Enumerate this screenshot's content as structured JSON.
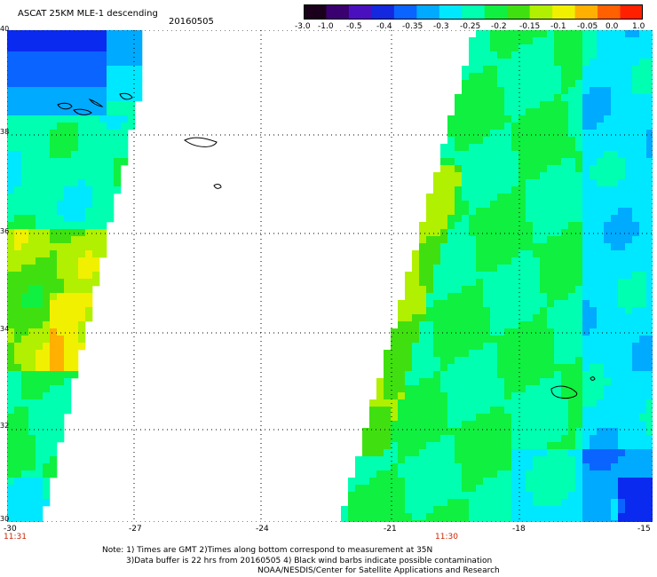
{
  "header": {
    "title": "ASCAT 25KM MLE-1 descending",
    "date": "20160505"
  },
  "colorbar": {
    "labels": [
      "-3.0",
      "-1.0",
      "-0.5",
      "-0.4",
      "-0.35",
      "-0.3",
      "-0.25",
      "-0.2",
      "-0.15",
      "-0.1",
      "-0.05",
      "0.0",
      "1.0"
    ],
    "colors": [
      "#1a001a",
      "#3a0070",
      "#4a10c0",
      "#1428e0",
      "#0a64ff",
      "#00aaff",
      "#00e8ff",
      "#00ffb0",
      "#10f040",
      "#40e010",
      "#b0f000",
      "#f0f000",
      "#ffb000",
      "#ff6000",
      "#ff2000"
    ]
  },
  "axes": {
    "x_ticks": [
      "-30",
      "-27",
      "-24",
      "-21",
      "-18",
      "-15"
    ],
    "y_ticks": [
      "40",
      "38",
      "36",
      "34",
      "32",
      "30"
    ],
    "time_labels": [
      "11:31",
      "11:30"
    ]
  },
  "notes": {
    "line1": "Note: 1) Times are GMT 2)Times along bottom correspond to measurement at 35N",
    "line2": "3)Data buffer is 22 hrs from 20160505 4) Black wind barbs indicate possible contamination",
    "line3": "NOAA/NESDIS/Center for Satellite Applications and Research"
  }
}
